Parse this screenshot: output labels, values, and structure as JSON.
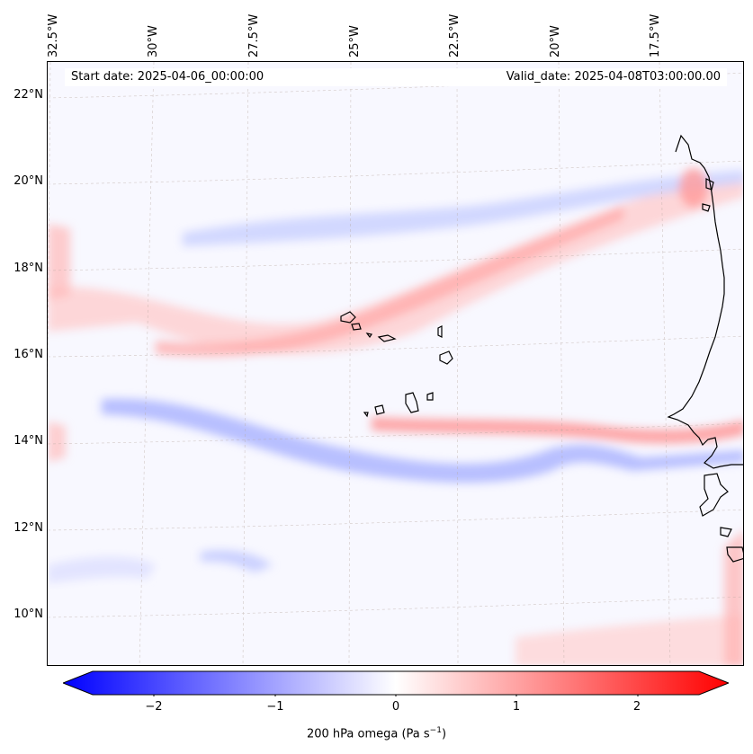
{
  "header": {
    "start_date": "Start date: 2025-04-06_00:00:00",
    "valid_date": "Valid_date: 2025-04-08T03:00:00.00"
  },
  "axes": {
    "lat_labels": [
      "22°N",
      "20°N",
      "18°N",
      "16°N",
      "14°N",
      "12°N",
      "10°N"
    ],
    "lon_labels": [
      "32.5°W",
      "30°W",
      "27.5°W",
      "25°W",
      "22.5°W",
      "20°W",
      "17.5°W"
    ]
  },
  "colorbar": {
    "label_main": "200 hPa omega (Pa s",
    "label_exp": "−1",
    "label_close": ")",
    "ticks": [
      "−2",
      "−1",
      "0",
      "1",
      "2"
    ],
    "range": [
      -2.5,
      2.5
    ],
    "low_color": "#0000ff",
    "mid_color": "#ffffff",
    "high_color": "#ff0000"
  },
  "map": {
    "variable": "200 hPa omega",
    "features": [
      "Cabo Verde islands",
      "West African coastline"
    ]
  }
}
